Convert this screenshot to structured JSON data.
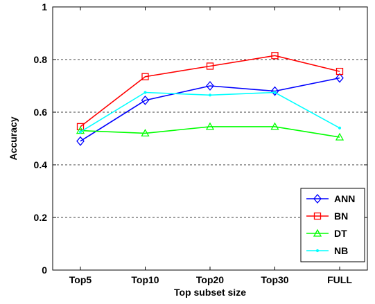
{
  "chart_data": {
    "type": "line",
    "categories": [
      "Top5",
      "Top10",
      "Top20",
      "Top30",
      "FULL"
    ],
    "xlabel": "Top subset size",
    "ylabel": "Accuracy",
    "ylim": [
      0,
      1
    ],
    "yticks": [
      0,
      0.2,
      0.4,
      0.6,
      0.8,
      1
    ],
    "ytick_labels": [
      "0",
      "0.2",
      "0.4",
      "0.6",
      "0.8",
      "1"
    ],
    "grid": "horizontal-dashed",
    "legend_position": "bottom-right",
    "series": [
      {
        "name": "ANN",
        "color": "#0000ff",
        "marker": "diamond",
        "values": [
          0.49,
          0.645,
          0.7,
          0.68,
          0.73
        ]
      },
      {
        "name": "BN",
        "color": "#ff0000",
        "marker": "square",
        "values": [
          0.545,
          0.735,
          0.775,
          0.815,
          0.755
        ]
      },
      {
        "name": "DT",
        "color": "#00ff00",
        "marker": "triangle",
        "values": [
          0.53,
          0.52,
          0.545,
          0.545,
          0.505
        ]
      },
      {
        "name": "NB",
        "color": "#00ffff",
        "marker": "point",
        "values": [
          0.525,
          0.675,
          0.665,
          0.675,
          0.54
        ]
      }
    ]
  }
}
